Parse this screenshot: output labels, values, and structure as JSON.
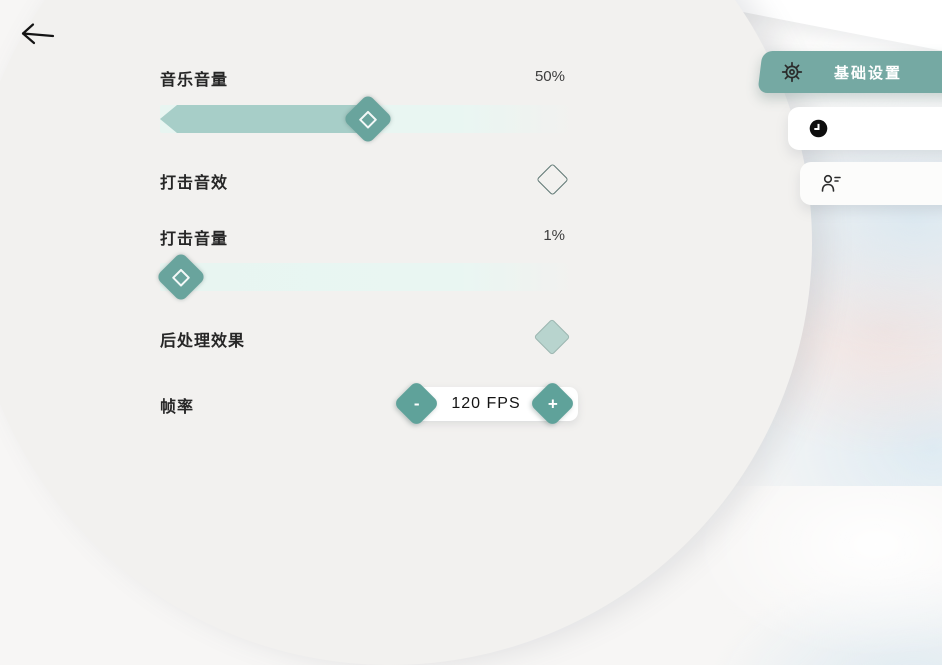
{
  "header": {
    "back_icon": "left-arrow"
  },
  "settings": {
    "music_volume": {
      "label": "音乐音量",
      "value": "50%",
      "percent": 50
    },
    "hit_sound": {
      "label": "打击音效",
      "checked": false
    },
    "hit_volume": {
      "label": "打击音量",
      "value": "1%",
      "percent": 1
    },
    "post_processing": {
      "label": "后处理效果",
      "checked": true
    },
    "frame_rate": {
      "label": "帧率",
      "value": "120 FPS",
      "decrease_label": "-",
      "increase_label": "+"
    }
  },
  "tabs": {
    "basic": {
      "label": "基础设置",
      "icon": "gear-icon",
      "active": true
    },
    "history": {
      "label": "",
      "icon": "clock-icon",
      "active": false
    },
    "account": {
      "label": "",
      "icon": "user-icon",
      "active": false
    }
  },
  "colors": {
    "accent_teal": "#75a9a3",
    "slider_fill": "#a7cec8",
    "slider_handle": "#69a49d",
    "slider_track": "#e9f6f2",
    "checkbox_checked_fill": "#b8d4ce",
    "panel_bg": "#f2f1ef"
  }
}
